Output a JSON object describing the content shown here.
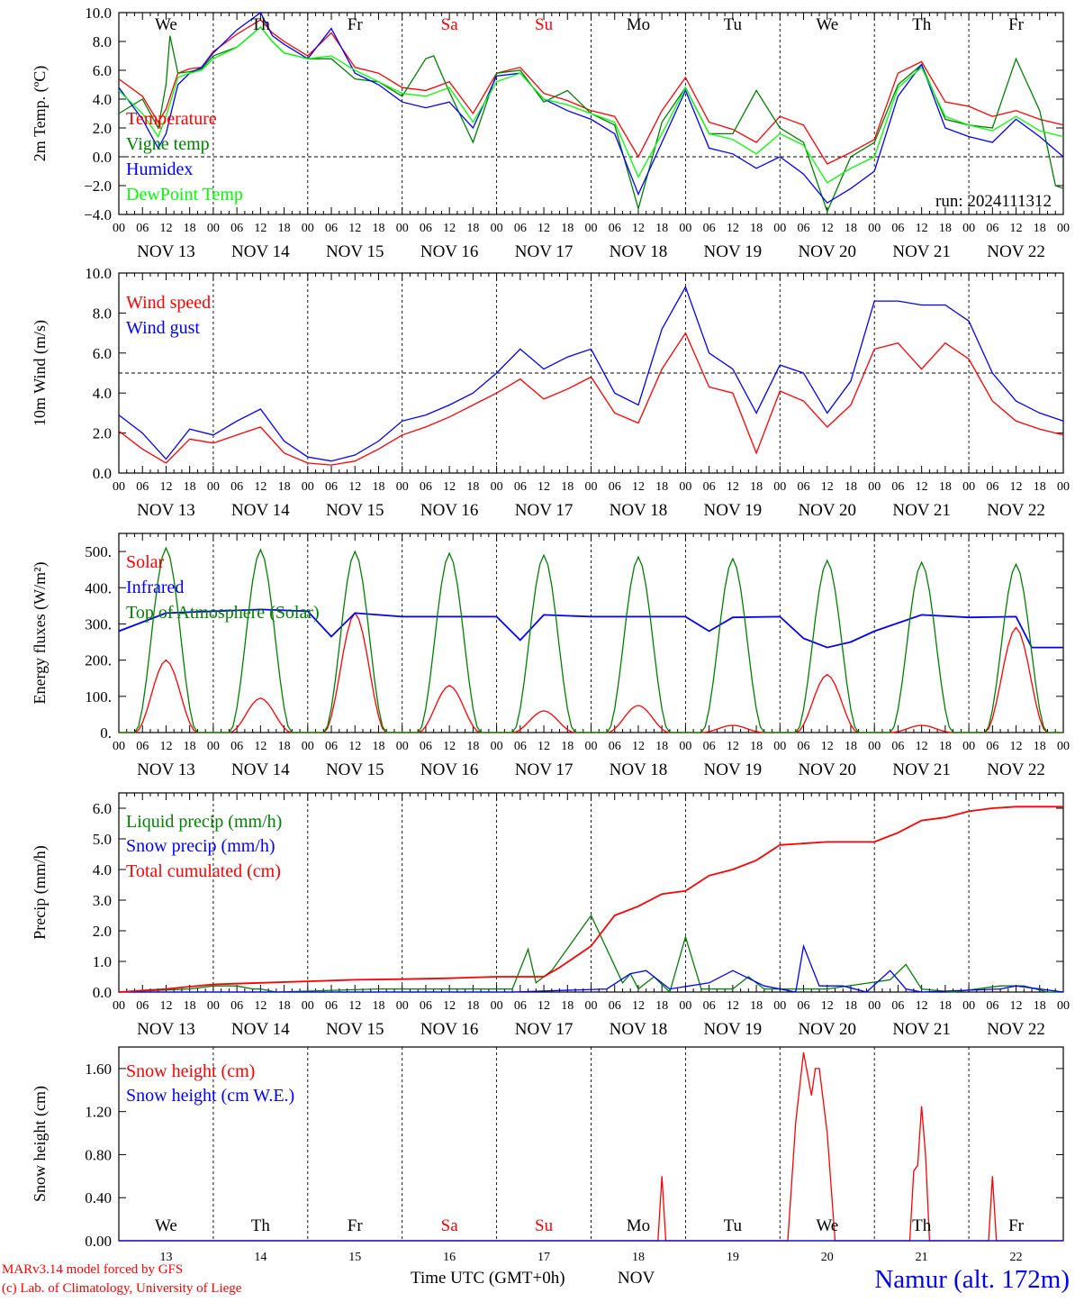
{
  "chart_data": [
    {
      "type": "line",
      "ylabel": "2m Temp. (ºC)",
      "ylim": [
        -4.0,
        10.0
      ],
      "yticks": [
        "10.0",
        "8.0",
        "6.0",
        "4.0",
        "2.0",
        "0.0",
        "−2.0",
        "−4.0"
      ],
      "ytick_values": [
        10,
        8,
        6,
        4,
        2,
        0,
        -2,
        -4
      ],
      "hline": 0,
      "x_unit": "hours since NOV 13 00 UTC",
      "day_names": [
        "We",
        "Th",
        "Fr",
        "Sa",
        "Su",
        "Mo",
        "Tu",
        "We",
        "Th",
        "Fr"
      ],
      "run_label": "run: 2024111312",
      "series": [
        {
          "name": "Temperature",
          "color": "#ff0000",
          "x": [
            0,
            6,
            10,
            12,
            15,
            18,
            21,
            24,
            30,
            36,
            39,
            42,
            48,
            54,
            60,
            66,
            72,
            78,
            84,
            90,
            96,
            102,
            108,
            114,
            120,
            126,
            132,
            138,
            144,
            150,
            156,
            162,
            168,
            174,
            180,
            186,
            192,
            198,
            204,
            210,
            216,
            222,
            228,
            234,
            240
          ],
          "y": [
            5.4,
            4.2,
            2.4,
            3.3,
            5.8,
            6.1,
            6.2,
            7.3,
            8.5,
            9.5,
            8.6,
            8.0,
            7.0,
            8.6,
            6.2,
            5.8,
            4.8,
            4.6,
            5.2,
            3.0,
            5.8,
            6.2,
            4.4,
            3.9,
            3.2,
            2.8,
            0.0,
            3.2,
            5.5,
            2.4,
            1.9,
            1.0,
            2.8,
            2.2,
            -0.5,
            0.3,
            1.2,
            5.8,
            6.6,
            3.8,
            3.5,
            2.8,
            3.2,
            2.6,
            2.2
          ]
        },
        {
          "name": "Vigne temp",
          "color": "#008000",
          "x": [
            0,
            6,
            10,
            12,
            13,
            15,
            18,
            21,
            24,
            30,
            36,
            39,
            42,
            48,
            54,
            60,
            66,
            72,
            78,
            80,
            84,
            90,
            96,
            102,
            108,
            114,
            120,
            126,
            132,
            138,
            144,
            150,
            156,
            162,
            168,
            174,
            180,
            186,
            192,
            198,
            204,
            210,
            216,
            222,
            228,
            234,
            238,
            240
          ],
          "y": [
            3.0,
            4.0,
            2.0,
            5.0,
            8.4,
            5.8,
            5.9,
            6.1,
            7.0,
            7.6,
            9.0,
            8.0,
            7.2,
            6.8,
            6.8,
            5.4,
            5.2,
            4.2,
            6.8,
            7.0,
            4.5,
            1.0,
            5.8,
            6.0,
            3.8,
            4.6,
            3.0,
            2.2,
            -3.6,
            2.4,
            4.8,
            1.6,
            1.6,
            4.6,
            2.0,
            1.0,
            -3.8,
            0.0,
            1.0,
            5.0,
            6.4,
            2.6,
            2.2,
            2.0,
            6.8,
            3.2,
            -2.0,
            -2.2
          ]
        },
        {
          "name": "Humidex",
          "color": "#0000ff",
          "x": [
            0,
            6,
            10,
            12,
            15,
            18,
            21,
            24,
            30,
            36,
            39,
            42,
            48,
            54,
            60,
            66,
            72,
            78,
            84,
            90,
            96,
            102,
            108,
            114,
            120,
            126,
            132,
            138,
            144,
            150,
            156,
            162,
            168,
            174,
            180,
            186,
            192,
            198,
            204,
            210,
            216,
            222,
            228,
            234,
            240
          ],
          "y": [
            4.8,
            2.6,
            0.6,
            1.6,
            5.0,
            5.8,
            6.2,
            7.2,
            8.8,
            10.0,
            8.4,
            7.8,
            6.8,
            8.9,
            5.8,
            5.0,
            3.8,
            3.4,
            3.8,
            2.0,
            5.6,
            5.8,
            4.0,
            3.2,
            2.6,
            1.6,
            -2.6,
            1.0,
            4.6,
            0.6,
            0.2,
            -0.8,
            0.0,
            -1.2,
            -3.2,
            -2.2,
            -1.0,
            4.2,
            6.4,
            2.0,
            1.4,
            1.0,
            2.6,
            1.4,
            0.0
          ]
        },
        {
          "name": "DewPoint Temp",
          "color": "#00ff00",
          "x": [
            0,
            6,
            10,
            12,
            15,
            18,
            21,
            24,
            30,
            36,
            39,
            42,
            48,
            54,
            60,
            66,
            72,
            78,
            84,
            90,
            96,
            102,
            108,
            114,
            120,
            126,
            132,
            138,
            144,
            150,
            156,
            162,
            168,
            174,
            180,
            186,
            192,
            198,
            204,
            210,
            216,
            222,
            228,
            234,
            240
          ],
          "y": [
            4.6,
            3.0,
            1.4,
            2.8,
            5.5,
            5.8,
            6.0,
            6.8,
            7.6,
            9.0,
            8.0,
            7.2,
            6.8,
            7.0,
            6.0,
            5.2,
            4.4,
            4.2,
            4.8,
            2.4,
            5.2,
            5.8,
            4.0,
            3.6,
            3.0,
            2.4,
            -1.4,
            1.6,
            4.8,
            1.6,
            1.2,
            0.2,
            1.6,
            0.8,
            -1.8,
            -0.8,
            0.0,
            4.8,
            6.2,
            2.8,
            2.2,
            1.8,
            2.8,
            1.8,
            1.4
          ]
        }
      ]
    },
    {
      "type": "line",
      "ylabel": "10m Wind (m/s)",
      "ylim": [
        0.0,
        10.0
      ],
      "yticks": [
        "10.0",
        "8.0",
        "6.0",
        "4.0",
        "2.0",
        "0.0"
      ],
      "ytick_values": [
        10,
        8,
        6,
        4,
        2,
        0
      ],
      "hline": 5,
      "series": [
        {
          "name": "Wind speed",
          "color": "#ff0000",
          "x": [
            0,
            6,
            12,
            18,
            24,
            30,
            36,
            42,
            48,
            54,
            60,
            66,
            72,
            78,
            84,
            90,
            96,
            102,
            108,
            114,
            120,
            126,
            132,
            138,
            144,
            150,
            156,
            162,
            168,
            174,
            180,
            186,
            192,
            198,
            204,
            210,
            216,
            222,
            228,
            234,
            240
          ],
          "y": [
            2.1,
            1.2,
            0.5,
            1.7,
            1.5,
            1.9,
            2.3,
            1.0,
            0.5,
            0.4,
            0.6,
            1.2,
            1.9,
            2.3,
            2.8,
            3.4,
            4.0,
            4.7,
            3.7,
            4.2,
            4.8,
            3.0,
            2.5,
            5.2,
            7.0,
            4.3,
            4.0,
            1.0,
            4.1,
            3.6,
            2.3,
            3.4,
            6.2,
            6.5,
            5.2,
            6.5,
            5.7,
            3.6,
            2.6,
            2.2,
            1.9
          ]
        },
        {
          "name": "Wind gust",
          "color": "#0000ff",
          "x": [
            0,
            6,
            12,
            18,
            24,
            30,
            36,
            42,
            48,
            54,
            60,
            66,
            72,
            78,
            84,
            90,
            96,
            102,
            108,
            114,
            120,
            126,
            132,
            138,
            144,
            150,
            156,
            162,
            168,
            174,
            180,
            186,
            192,
            198,
            204,
            210,
            216,
            222,
            228,
            234,
            240
          ],
          "y": [
            2.9,
            2.0,
            0.7,
            2.2,
            1.9,
            2.6,
            3.2,
            1.6,
            0.8,
            0.6,
            0.9,
            1.6,
            2.6,
            2.9,
            3.4,
            4.0,
            5.0,
            6.2,
            5.2,
            5.8,
            6.2,
            4.0,
            3.4,
            7.2,
            9.3,
            6.0,
            5.2,
            3.0,
            5.4,
            5.0,
            3.0,
            4.6,
            8.6,
            8.6,
            8.4,
            8.4,
            7.6,
            5.0,
            3.6,
            3.0,
            2.6
          ]
        }
      ]
    },
    {
      "type": "line",
      "ylabel": "Energy fluxes (W/m²)",
      "ylim": [
        0,
        550
      ],
      "yticks": [
        "500.",
        "400.",
        "300.",
        "200.",
        "100.",
        "0."
      ],
      "ytick_values": [
        500,
        400,
        300,
        200,
        100,
        0
      ],
      "series": [
        {
          "name": "Solar",
          "color": "#ff0000",
          "peaks": [
            200,
            95,
            330,
            130,
            60,
            75,
            20,
            160,
            20,
            290
          ]
        },
        {
          "name": "Infrared",
          "color": "#0000ff",
          "x": [
            0,
            12,
            24,
            36,
            48,
            54,
            60,
            66,
            72,
            84,
            96,
            102,
            108,
            120,
            144,
            150,
            156,
            168,
            174,
            180,
            186,
            192,
            204,
            216,
            228,
            232,
            240
          ],
          "y": [
            280,
            330,
            335,
            340,
            335,
            265,
            330,
            325,
            320,
            320,
            320,
            255,
            325,
            320,
            320,
            280,
            318,
            320,
            260,
            235,
            250,
            280,
            325,
            318,
            320,
            235,
            235
          ]
        },
        {
          "name": "Top of Atmosphere (Solar)",
          "color": "#008000",
          "peaks": [
            510,
            505,
            500,
            495,
            490,
            485,
            480,
            475,
            470,
            465
          ]
        }
      ]
    },
    {
      "type": "line",
      "ylabel": "Precip (mm/h)",
      "ylim": [
        0.0,
        6.5
      ],
      "yticks": [
        "6.0",
        "5.0",
        "4.0",
        "3.0",
        "2.0",
        "1.0",
        "0.0"
      ],
      "ytick_values": [
        6,
        5,
        4,
        3,
        2,
        1,
        0
      ],
      "series": [
        {
          "name": "Liquid precip (mm/h)",
          "color": "#008000",
          "x": [
            0,
            18,
            24,
            30,
            34,
            36,
            40,
            66,
            100,
            104,
            106,
            110,
            120,
            128,
            130,
            132,
            136,
            140,
            144,
            148,
            156,
            160,
            164,
            180,
            196,
            200,
            204,
            212,
            224,
            230,
            236,
            240
          ],
          "y": [
            0,
            0.1,
            0.2,
            0.2,
            0.1,
            0.1,
            0.0,
            0.1,
            0.1,
            1.4,
            0.3,
            0.7,
            2.5,
            0.3,
            0.6,
            0.1,
            0.5,
            0.0,
            1.8,
            0.1,
            0.1,
            0.5,
            0.1,
            0.1,
            0.4,
            0.9,
            0.1,
            0.0,
            0.2,
            0.2,
            0.0,
            0.0
          ]
        },
        {
          "name": "Snow precip (mm/h)",
          "color": "#0000ff",
          "x": [
            0,
            100,
            124,
            130,
            134,
            140,
            150,
            156,
            164,
            172,
            174,
            178,
            184,
            190,
            196,
            200,
            204,
            224,
            228,
            240
          ],
          "y": [
            0,
            0,
            0.1,
            0.6,
            0.7,
            0.1,
            0.3,
            0.7,
            0.2,
            0.0,
            1.5,
            0.2,
            0.2,
            0.0,
            0.7,
            0.1,
            0.0,
            0.1,
            0.2,
            0.0
          ]
        },
        {
          "name": "Total cumulated (cm)",
          "color": "#ff0000",
          "x": [
            0,
            12,
            24,
            36,
            48,
            60,
            72,
            84,
            96,
            108,
            112,
            120,
            126,
            132,
            138,
            144,
            150,
            156,
            162,
            168,
            180,
            192,
            198,
            204,
            210,
            216,
            222,
            228,
            240
          ],
          "y": [
            0,
            0.1,
            0.25,
            0.3,
            0.35,
            0.4,
            0.42,
            0.45,
            0.5,
            0.5,
            0.8,
            1.5,
            2.5,
            2.8,
            3.2,
            3.3,
            3.8,
            4.0,
            4.3,
            4.8,
            4.9,
            4.9,
            5.2,
            5.6,
            5.7,
            5.9,
            6.0,
            6.05,
            6.05
          ]
        }
      ]
    },
    {
      "type": "line",
      "ylabel": "Snow height (cm)",
      "ylim": [
        0.0,
        1.8
      ],
      "yticks": [
        "1.60",
        "1.20",
        "0.80",
        "0.40",
        "0.00"
      ],
      "ytick_values": [
        1.6,
        1.2,
        0.8,
        0.4,
        0
      ],
      "series": [
        {
          "name": "Snow height (cm)",
          "color": "#ff0000",
          "x": [
            0,
            137,
            138,
            139,
            140,
            170,
            172,
            174,
            176,
            177,
            178,
            180,
            182,
            184,
            200,
            201,
            202,
            203,
            204,
            205,
            206,
            208,
            220,
            221,
            222,
            223,
            240
          ],
          "y": [
            0,
            0,
            0.6,
            0,
            0,
            0,
            1.1,
            1.75,
            1.35,
            1.6,
            1.6,
            1.0,
            0,
            0,
            0,
            0,
            0.65,
            0.7,
            1.25,
            0.8,
            0,
            0,
            0,
            0,
            0.6,
            0,
            0
          ]
        },
        {
          "name": "Snow height (cm W.E.)",
          "color": "#0000ff",
          "x": [
            0,
            240
          ],
          "y": [
            0,
            0
          ]
        }
      ]
    }
  ],
  "x_axis": {
    "hour_labels": [
      "00",
      "06",
      "12",
      "18"
    ],
    "dates": [
      "NOV 13",
      "NOV 14",
      "NOV 15",
      "NOV 16",
      "NOV 17",
      "NOV 18",
      "NOV 19",
      "NOV 20",
      "NOV 21",
      "NOV 22"
    ],
    "day_numbers": [
      "13",
      "14",
      "15",
      "16",
      "17",
      "18",
      "19",
      "20",
      "21",
      "22"
    ],
    "weekend_indices": [
      3,
      4
    ],
    "bottom_title": "Time UTC (GMT+0h)",
    "month": "NOV"
  },
  "footer": {
    "credit_line1": "MARv3.14 model forced by GFS",
    "credit_line2": "(c) Lab. of Climatology, University of Liege",
    "station": "Namur (alt. 172m)"
  },
  "colors": {
    "red": "#ff0000",
    "green": "#008000",
    "blue": "#0000ff",
    "lime": "#00ff00",
    "axis": "#000000"
  }
}
